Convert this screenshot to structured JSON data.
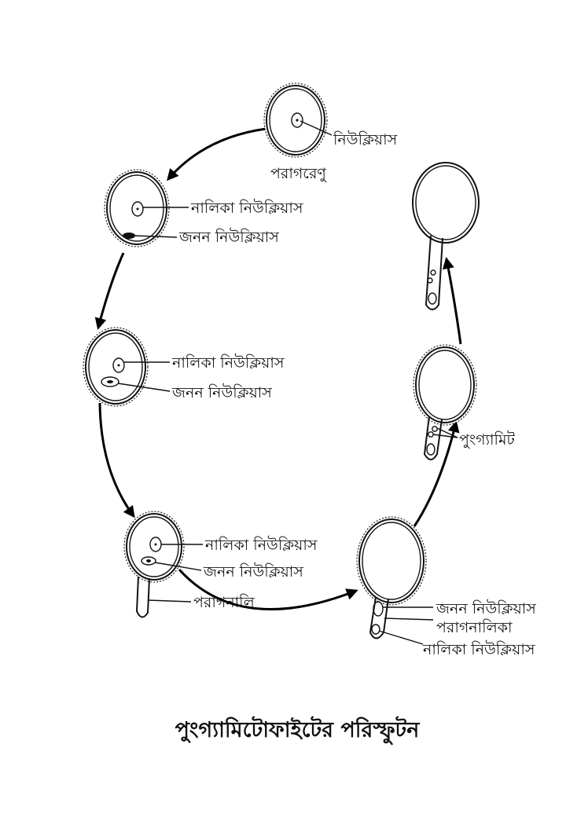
{
  "title": "পুংগ্যামিটোফাইটের পরিস্ফুটন",
  "labels": {
    "s1_nucleus": "নিউক্লিয়াস",
    "s1_pollen": "পরাগরেণু",
    "s2_tube_nucleus": "নালিকা নিউক্লিয়াস",
    "s2_generative_nucleus": "জনন নিউক্লিয়াস",
    "s3_tube_nucleus": "নালিকা নিউক্লিয়াস",
    "s3_generative_nucleus": "জনন নিউক্লিয়াস",
    "s4_tube_nucleus": "নালিকা নিউক্লিয়াস",
    "s4_generative_nucleus": "জনন নিউক্লিয়াস",
    "s4_pollen_tube": "পরাগনালি",
    "s5_generative_nucleus": "জনন নিউক্লিয়াস",
    "s5_pollen_tube": "পরাগনালিকা",
    "s5_tube_nucleus": "নালিকা নিউক্লিয়াস",
    "s6_male_gametes": "পুংগ্যামিট"
  },
  "colors": {
    "ink": "#111111",
    "background": "#ffffff"
  }
}
